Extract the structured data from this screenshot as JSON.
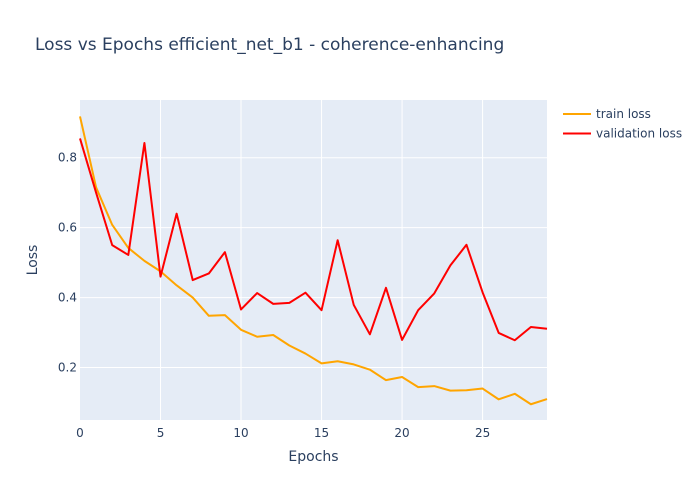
{
  "chart_data": {
    "type": "line",
    "title": "Loss vs Epochs efficient_net_b1 - coherence-enhancing",
    "xlabel": "Epochs",
    "ylabel": "Loss",
    "xlim": [
      0,
      29
    ],
    "ylim": [
      0.05,
      0.965
    ],
    "x_ticks": [
      0,
      5,
      10,
      15,
      20,
      25
    ],
    "y_ticks": [
      0.2,
      0.4,
      0.6,
      0.8
    ],
    "grid": true,
    "legend_position": "top-right",
    "x": [
      0,
      1,
      2,
      3,
      4,
      5,
      6,
      7,
      8,
      9,
      10,
      11,
      12,
      13,
      14,
      15,
      16,
      17,
      18,
      19,
      20,
      21,
      22,
      23,
      24,
      25,
      26,
      27,
      28,
      29
    ],
    "series": [
      {
        "name": "train loss",
        "color": "#FFA500",
        "values": [
          0.918,
          0.715,
          0.608,
          0.542,
          0.505,
          0.475,
          0.435,
          0.4,
          0.348,
          0.35,
          0.308,
          0.288,
          0.293,
          0.263,
          0.24,
          0.212,
          0.218,
          0.209,
          0.194,
          0.164,
          0.173,
          0.144,
          0.147,
          0.134,
          0.135,
          0.14,
          0.109,
          0.125,
          0.095,
          0.11
        ]
      },
      {
        "name": "validation loss",
        "color": "#FF0000",
        "values": [
          0.855,
          0.7,
          0.55,
          0.522,
          0.842,
          0.46,
          0.64,
          0.45,
          0.469,
          0.53,
          0.366,
          0.413,
          0.382,
          0.385,
          0.414,
          0.364,
          0.564,
          0.379,
          0.295,
          0.428,
          0.279,
          0.364,
          0.412,
          0.492,
          0.551,
          0.415,
          0.299,
          0.278,
          0.316,
          0.311
        ]
      }
    ]
  }
}
